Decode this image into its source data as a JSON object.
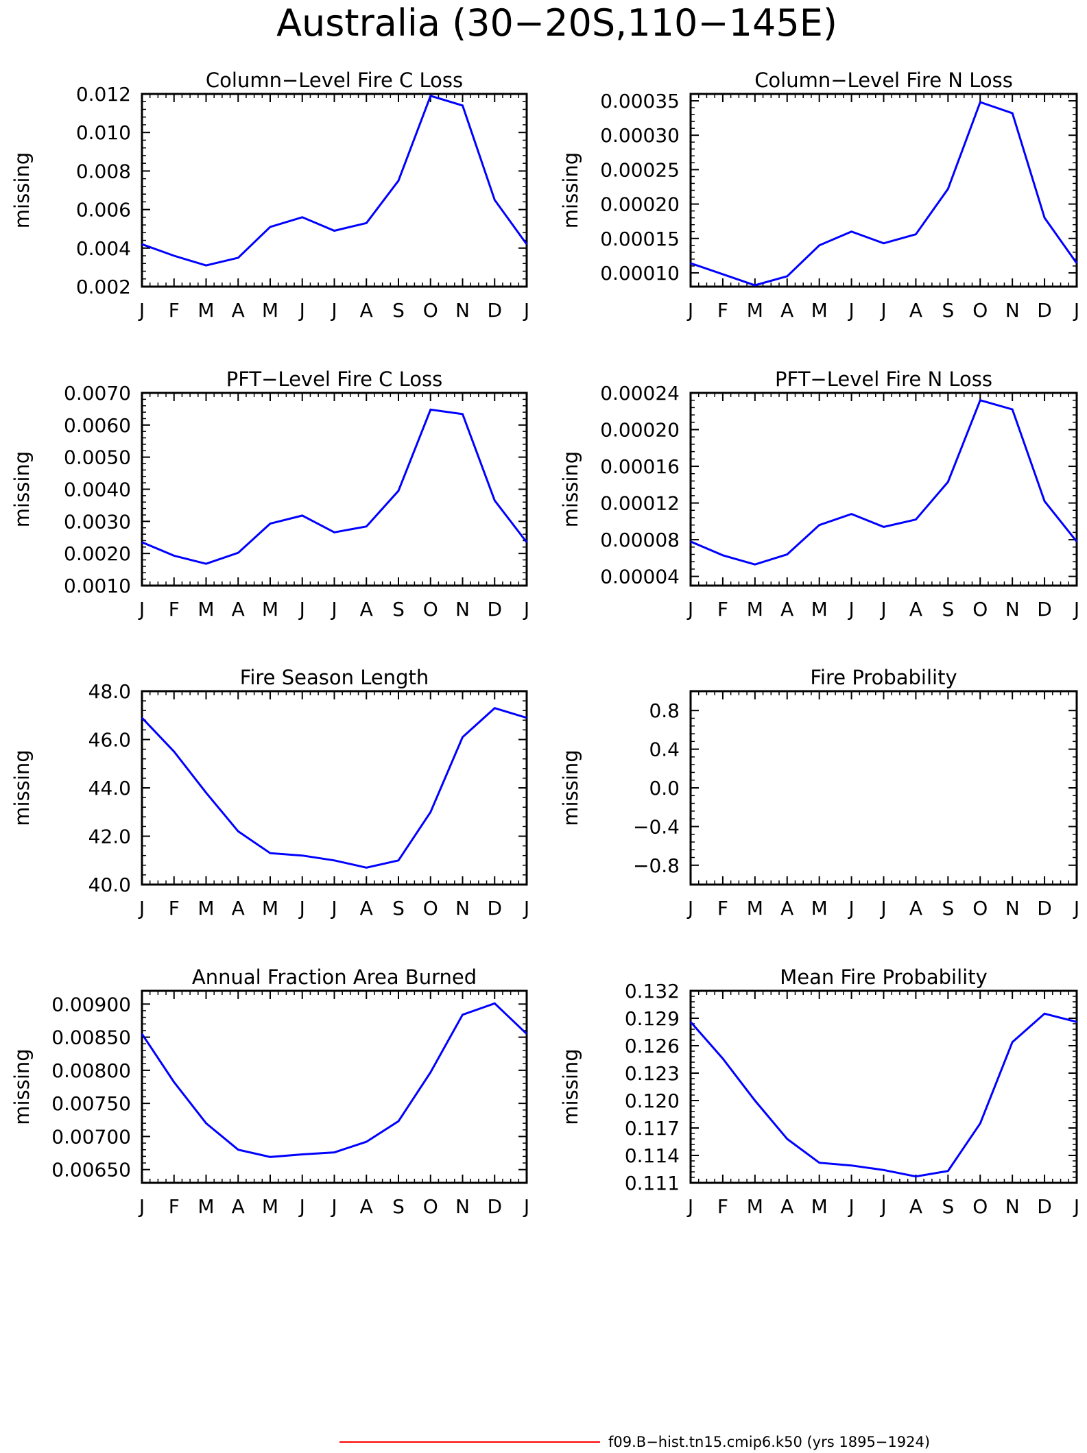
{
  "figure": {
    "title": "Australia (30−20S,110−145E)",
    "legend": {
      "label": "f09.B−hist.tn15.cmip6.k50 (yrs 1895−1924)",
      "color": "#ff0000"
    },
    "series_color": "#0000ff"
  },
  "chart_data": [
    {
      "type": "line",
      "title": "Column−Level Fire C Loss",
      "ylabel": "missing",
      "x": [
        "J",
        "F",
        "M",
        "A",
        "M",
        "J",
        "J",
        "A",
        "S",
        "O",
        "N",
        "D",
        "J"
      ],
      "ylim": [
        0.002,
        0.012
      ],
      "yticks": [
        "0.002",
        "0.004",
        "0.006",
        "0.008",
        "0.010",
        "0.012"
      ],
      "series": [
        {
          "values": [
            0.0042,
            0.0036,
            0.0031,
            0.0035,
            0.0051,
            0.0056,
            0.0049,
            0.0053,
            0.0075,
            0.0119,
            0.0114,
            0.0065,
            0.0042
          ]
        }
      ]
    },
    {
      "type": "line",
      "title": "Column−Level Fire N Loss",
      "ylabel": "missing",
      "x": [
        "J",
        "F",
        "M",
        "A",
        "M",
        "J",
        "J",
        "A",
        "S",
        "O",
        "N",
        "D",
        "J"
      ],
      "ylim": [
        8e-05,
        0.00036
      ],
      "yticks": [
        "0.00010",
        "0.00015",
        "0.00020",
        "0.00025",
        "0.00030",
        "0.00035"
      ],
      "series": [
        {
          "values": [
            0.000114,
            9.8e-05,
            8.2e-05,
            9.5e-05,
            0.00014,
            0.00016,
            0.000143,
            0.000156,
            0.000222,
            0.000348,
            0.000332,
            0.00018,
            0.000114
          ]
        }
      ]
    },
    {
      "type": "line",
      "title": "PFT−Level Fire C Loss",
      "ylabel": "missing",
      "x": [
        "J",
        "F",
        "M",
        "A",
        "M",
        "J",
        "J",
        "A",
        "S",
        "O",
        "N",
        "D",
        "J"
      ],
      "ylim": [
        0.001,
        0.007
      ],
      "yticks": [
        "0.0010",
        "0.0020",
        "0.0030",
        "0.0040",
        "0.0050",
        "0.0060",
        "0.0070"
      ],
      "series": [
        {
          "values": [
            0.00235,
            0.00193,
            0.00168,
            0.00202,
            0.00293,
            0.00318,
            0.00266,
            0.00284,
            0.00395,
            0.00648,
            0.00634,
            0.00365,
            0.00235
          ]
        }
      ]
    },
    {
      "type": "line",
      "title": "PFT−Level Fire N Loss",
      "ylabel": "missing",
      "x": [
        "J",
        "F",
        "M",
        "A",
        "M",
        "J",
        "J",
        "A",
        "S",
        "O",
        "N",
        "D",
        "J"
      ],
      "ylim": [
        3e-05,
        0.00024
      ],
      "yticks": [
        "0.00004",
        "0.00008",
        "0.00012",
        "0.00016",
        "0.00020",
        "0.00024"
      ],
      "series": [
        {
          "values": [
            7.8e-05,
            6.3e-05,
            5.3e-05,
            6.4e-05,
            9.6e-05,
            0.000108,
            9.4e-05,
            0.000102,
            0.000143,
            0.000232,
            0.000222,
            0.000122,
            7.8e-05
          ]
        }
      ]
    },
    {
      "type": "line",
      "title": "Fire Season Length",
      "ylabel": "missing",
      "x": [
        "J",
        "F",
        "M",
        "A",
        "M",
        "J",
        "J",
        "A",
        "S",
        "O",
        "N",
        "D",
        "J"
      ],
      "ylim": [
        40.0,
        48.0
      ],
      "yticks": [
        "40.0",
        "42.0",
        "44.0",
        "46.0",
        "48.0"
      ],
      "series": [
        {
          "values": [
            46.9,
            45.5,
            43.8,
            42.2,
            41.3,
            41.2,
            41.0,
            40.7,
            41.0,
            43.0,
            46.1,
            47.3,
            46.9
          ]
        }
      ]
    },
    {
      "type": "line",
      "title": "Fire Probability",
      "ylabel": "missing",
      "x": [
        "J",
        "F",
        "M",
        "A",
        "M",
        "J",
        "J",
        "A",
        "S",
        "O",
        "N",
        "D",
        "J"
      ],
      "ylim": [
        -1.0,
        1.0
      ],
      "yticks": [
        "−0.8",
        "−0.4",
        "0.0",
        "0.4",
        "0.8"
      ],
      "series": []
    },
    {
      "type": "line",
      "title": "Annual Fraction Area Burned",
      "ylabel": "missing",
      "x": [
        "J",
        "F",
        "M",
        "A",
        "M",
        "J",
        "J",
        "A",
        "S",
        "O",
        "N",
        "D",
        "J"
      ],
      "ylim": [
        0.0063,
        0.0092
      ],
      "yticks": [
        "0.00650",
        "0.00700",
        "0.00750",
        "0.00800",
        "0.00850",
        "0.00900"
      ],
      "series": [
        {
          "values": [
            0.00855,
            0.00782,
            0.0072,
            0.0068,
            0.00669,
            0.00673,
            0.00676,
            0.00692,
            0.00723,
            0.00797,
            0.00884,
            0.00901,
            0.00855
          ]
        }
      ]
    },
    {
      "type": "line",
      "title": "Mean Fire Probability",
      "ylabel": "missing",
      "x": [
        "J",
        "F",
        "M",
        "A",
        "M",
        "J",
        "J",
        "A",
        "S",
        "O",
        "N",
        "D",
        "J"
      ],
      "ylim": [
        0.111,
        0.132
      ],
      "yticks": [
        "0.111",
        "0.114",
        "0.117",
        "0.120",
        "0.123",
        "0.126",
        "0.129",
        "0.132"
      ],
      "series": [
        {
          "values": [
            0.1286,
            0.1246,
            0.12,
            0.1158,
            0.1132,
            0.1129,
            0.1124,
            0.1117,
            0.1123,
            0.1175,
            0.1264,
            0.1295,
            0.1286
          ]
        }
      ]
    }
  ]
}
